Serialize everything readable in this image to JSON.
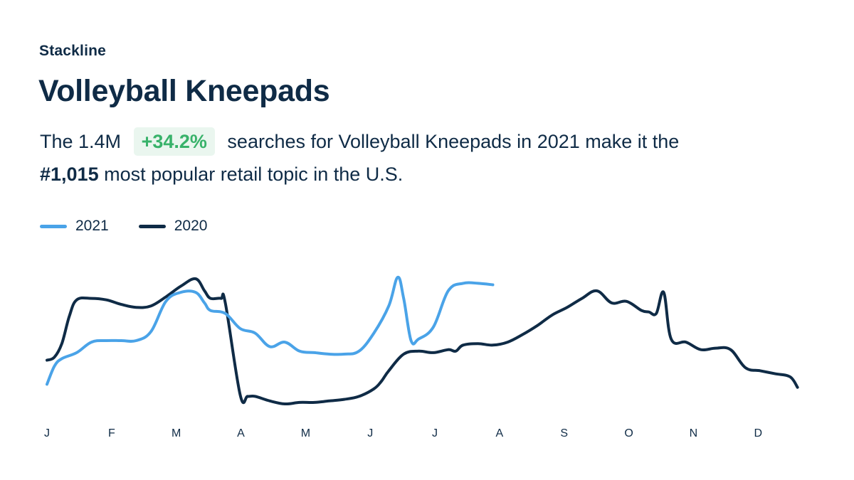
{
  "brand": "Stackline",
  "title": "Volleyball Kneepads",
  "summary": {
    "prefix": "The 1.4M",
    "change": "+34.2%",
    "middle": "searches for Volleyball Kneepads in 2021 make it the",
    "rank": "#1,015",
    "suffix": "most popular retail topic in the U.S."
  },
  "colors": {
    "series_2021": "#4aa3e8",
    "series_2020": "#0f2b46",
    "badge_bg": "#eaf6ef",
    "badge_text": "#38b26a"
  },
  "chart_data": {
    "type": "line",
    "title": "",
    "xlabel": "",
    "ylabel": "",
    "x_unit": "week",
    "xlim": [
      0,
      51
    ],
    "ylim": [
      0,
      100
    ],
    "x_ticks": [
      {
        "label": "J",
        "x": 0
      },
      {
        "label": "F",
        "x": 4.35
      },
      {
        "label": "M",
        "x": 8.7
      },
      {
        "label": "A",
        "x": 13.05
      },
      {
        "label": "M",
        "x": 17.4
      },
      {
        "label": "J",
        "x": 21.75
      },
      {
        "label": "J",
        "x": 26.1
      },
      {
        "label": "A",
        "x": 30.45
      },
      {
        "label": "S",
        "x": 34.8
      },
      {
        "label": "O",
        "x": 39.15
      },
      {
        "label": "N",
        "x": 43.5
      },
      {
        "label": "D",
        "x": 47.85
      }
    ],
    "legend": "top-left",
    "series": [
      {
        "name": "2021",
        "x": [
          0,
          0.5,
          1,
          2,
          3,
          4,
          5,
          6,
          7,
          8,
          9,
          10,
          10.6,
          11,
          12,
          13,
          14,
          15,
          16,
          17,
          18,
          19,
          20,
          21,
          22,
          23,
          23.6,
          24,
          24.5,
          25,
          26,
          27,
          28,
          29,
          30
        ],
        "values": [
          13,
          25,
          30,
          34,
          41,
          42,
          42,
          42,
          48,
          68,
          74,
          74,
          67,
          62,
          60,
          50,
          47,
          38,
          41,
          35,
          34,
          33,
          33,
          35,
          47,
          65,
          84,
          70,
          42,
          43,
          51,
          75,
          80,
          80,
          79
        ]
      },
      {
        "name": "2020",
        "x": [
          0,
          0.5,
          1,
          1.5,
          2,
          3,
          4,
          5,
          6,
          7,
          8,
          9,
          10,
          10.6,
          11,
          11.7,
          12,
          13,
          13.5,
          14,
          15,
          16,
          17,
          18,
          19,
          20,
          21,
          22,
          22.5,
          23,
          24,
          25,
          26,
          27,
          27.5,
          28,
          29,
          30,
          31,
          32,
          33,
          34,
          35,
          36,
          37,
          38,
          39,
          40,
          40.5,
          41,
          41.5,
          42,
          43,
          44,
          45,
          46,
          47,
          48,
          49,
          50,
          50.5
        ],
        "values": [
          29,
          31,
          40,
          58,
          69,
          70,
          69,
          66,
          64,
          65,
          71,
          78,
          83,
          75,
          70,
          70,
          67,
          6,
          5,
          5,
          2,
          0,
          1,
          1,
          2,
          3,
          5,
          10,
          15,
          22,
          33,
          35,
          34,
          36,
          35,
          39,
          40,
          39,
          41,
          46,
          52,
          59,
          64,
          70,
          75,
          67,
          68,
          62,
          61,
          60,
          74,
          43,
          41,
          36,
          37,
          36,
          24,
          22,
          20,
          18,
          11
        ]
      }
    ]
  }
}
